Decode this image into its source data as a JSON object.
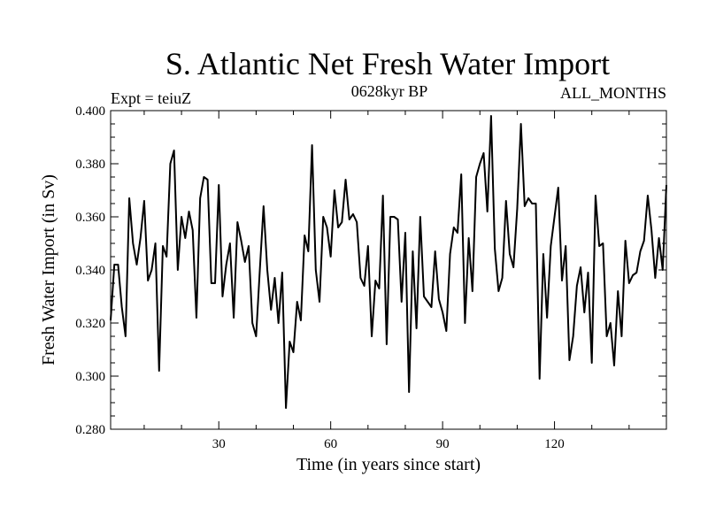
{
  "chart_data": {
    "type": "line",
    "title": "S. Atlantic Net Fresh Water Import",
    "subtitle_left": "Expt = teiuZ",
    "subtitle_center": "0628kyr BP",
    "subtitle_right": "ALL_MONTHS",
    "xlabel": "Time (in years since start)",
    "ylabel": "Fresh Water Import (in Sv)",
    "xlim": [
      1,
      150
    ],
    "ylim": [
      0.28,
      0.4
    ],
    "x_ticks": [
      30,
      60,
      90,
      120
    ],
    "x_tick_labels": [
      "30",
      "60",
      "90",
      "120"
    ],
    "y_ticks": [
      0.28,
      0.3,
      0.32,
      0.34,
      0.36,
      0.38,
      0.4
    ],
    "y_tick_labels": [
      "0.280",
      "0.300",
      "0.320",
      "0.340",
      "0.360",
      "0.380",
      "0.400"
    ],
    "series": [
      {
        "name": "Fresh Water Import",
        "color": "#000000",
        "x": [
          1,
          2,
          3,
          4,
          5,
          6,
          7,
          8,
          9,
          10,
          11,
          12,
          13,
          14,
          15,
          16,
          17,
          18,
          19,
          20,
          21,
          22,
          23,
          24,
          25,
          26,
          27,
          28,
          29,
          30,
          31,
          32,
          33,
          34,
          35,
          36,
          37,
          38,
          39,
          40,
          41,
          42,
          43,
          44,
          45,
          46,
          47,
          48,
          49,
          50,
          51,
          52,
          53,
          54,
          55,
          56,
          57,
          58,
          59,
          60,
          61,
          62,
          63,
          64,
          65,
          66,
          67,
          68,
          69,
          70,
          71,
          72,
          73,
          74,
          75,
          76,
          77,
          78,
          79,
          80,
          81,
          82,
          83,
          84,
          85,
          86,
          87,
          88,
          89,
          90,
          91,
          92,
          93,
          94,
          95,
          96,
          97,
          98,
          99,
          100,
          101,
          102,
          103,
          104,
          105,
          106,
          107,
          108,
          109,
          110,
          111,
          112,
          113,
          114,
          115,
          116,
          117,
          118,
          119,
          120,
          121,
          122,
          123,
          124,
          125,
          126,
          127,
          128,
          129,
          130,
          131,
          132,
          133,
          134,
          135,
          136,
          137,
          138,
          139,
          140,
          141,
          142,
          143,
          144,
          145,
          146,
          147,
          148,
          149,
          150
        ],
        "values": [
          0.321,
          0.342,
          0.342,
          0.326,
          0.315,
          0.367,
          0.35,
          0.342,
          0.352,
          0.366,
          0.336,
          0.34,
          0.35,
          0.302,
          0.349,
          0.345,
          0.38,
          0.385,
          0.34,
          0.36,
          0.352,
          0.362,
          0.355,
          0.322,
          0.367,
          0.375,
          0.374,
          0.335,
          0.335,
          0.372,
          0.33,
          0.342,
          0.35,
          0.322,
          0.358,
          0.351,
          0.343,
          0.349,
          0.32,
          0.315,
          0.34,
          0.364,
          0.34,
          0.325,
          0.337,
          0.32,
          0.339,
          0.288,
          0.313,
          0.309,
          0.328,
          0.321,
          0.353,
          0.347,
          0.387,
          0.34,
          0.328,
          0.36,
          0.356,
          0.345,
          0.37,
          0.356,
          0.358,
          0.374,
          0.359,
          0.361,
          0.358,
          0.337,
          0.334,
          0.349,
          0.315,
          0.336,
          0.333,
          0.368,
          0.312,
          0.36,
          0.36,
          0.359,
          0.328,
          0.354,
          0.294,
          0.347,
          0.318,
          0.36,
          0.33,
          0.328,
          0.326,
          0.347,
          0.329,
          0.324,
          0.317,
          0.346,
          0.356,
          0.354,
          0.376,
          0.32,
          0.352,
          0.332,
          0.375,
          0.38,
          0.384,
          0.362,
          0.398,
          0.348,
          0.332,
          0.337,
          0.366,
          0.346,
          0.341,
          0.363,
          0.395,
          0.364,
          0.367,
          0.365,
          0.365,
          0.299,
          0.346,
          0.322,
          0.349,
          0.36,
          0.371,
          0.336,
          0.349,
          0.306,
          0.315,
          0.334,
          0.341,
          0.324,
          0.339,
          0.305,
          0.368,
          0.349,
          0.35,
          0.315,
          0.32,
          0.304,
          0.332,
          0.315,
          0.351,
          0.335,
          0.338,
          0.339,
          0.347,
          0.351,
          0.368,
          0.355,
          0.337,
          0.352,
          0.34,
          0.372
        ]
      }
    ]
  }
}
